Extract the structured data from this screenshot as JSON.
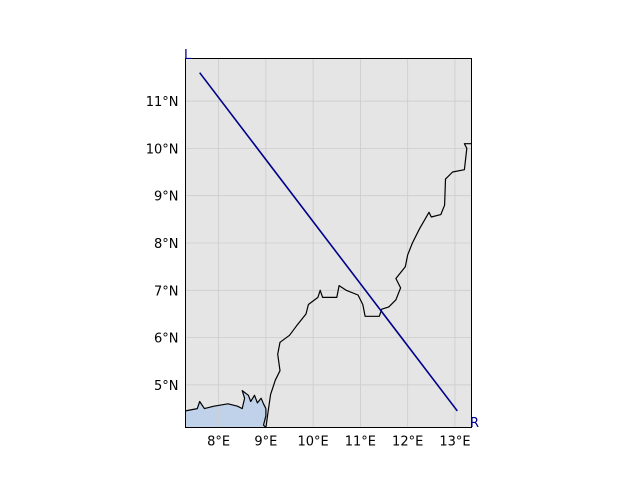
{
  "map": {
    "extent": {
      "lon": [
        7.3,
        13.35
      ],
      "lat": [
        4.1,
        11.9
      ]
    },
    "colors": {
      "land": "#e5e5e5",
      "ocean": "#c0d2ea",
      "coastline": "#000000",
      "grid": "#cccccc",
      "transect": "#00008b",
      "frame": "#000000"
    },
    "gridlines": true,
    "x_ticks": [
      {
        "value": 8,
        "label": "8°E"
      },
      {
        "value": 9,
        "label": "9°E"
      },
      {
        "value": 10,
        "label": "10°E"
      },
      {
        "value": 11,
        "label": "11°E"
      },
      {
        "value": 12,
        "label": "12°E"
      },
      {
        "value": 13,
        "label": "13°E"
      }
    ],
    "y_ticks": [
      {
        "value": 5,
        "label": "5°N"
      },
      {
        "value": 6,
        "label": "6°N"
      },
      {
        "value": 7,
        "label": "7°N"
      },
      {
        "value": 8,
        "label": "8°N"
      },
      {
        "value": 9,
        "label": "9°N"
      },
      {
        "value": 10,
        "label": "10°N"
      },
      {
        "value": 11,
        "label": "11°N"
      }
    ],
    "transect": {
      "start": {
        "lon": 7.6,
        "lat": 11.6,
        "label": "L"
      },
      "end": {
        "lon": 13.05,
        "lat": 4.45,
        "label": "R"
      }
    },
    "coastline": [
      [
        7.3,
        4.45
      ],
      [
        7.55,
        4.5
      ],
      [
        7.6,
        4.65
      ],
      [
        7.7,
        4.5
      ],
      [
        7.9,
        4.55
      ],
      [
        8.2,
        4.6
      ],
      [
        8.4,
        4.55
      ],
      [
        8.5,
        4.5
      ],
      [
        8.55,
        4.72
      ],
      [
        8.5,
        4.88
      ],
      [
        8.63,
        4.78
      ],
      [
        8.68,
        4.65
      ],
      [
        8.76,
        4.78
      ],
      [
        8.82,
        4.62
      ],
      [
        8.9,
        4.72
      ],
      [
        8.95,
        4.6
      ],
      [
        9.0,
        4.5
      ],
      [
        9.0,
        4.35
      ],
      [
        8.95,
        4.15
      ],
      [
        9.0,
        4.1
      ]
    ],
    "border": [
      [
        9.0,
        4.1
      ],
      [
        9.05,
        4.45
      ],
      [
        9.1,
        4.8
      ],
      [
        9.2,
        5.1
      ],
      [
        9.3,
        5.3
      ],
      [
        9.25,
        5.65
      ],
      [
        9.3,
        5.9
      ],
      [
        9.5,
        6.05
      ],
      [
        9.65,
        6.25
      ],
      [
        9.85,
        6.5
      ],
      [
        9.9,
        6.7
      ],
      [
        10.1,
        6.85
      ],
      [
        10.15,
        7.0
      ],
      [
        10.2,
        6.85
      ],
      [
        10.5,
        6.85
      ],
      [
        10.55,
        7.1
      ],
      [
        10.7,
        7.0
      ],
      [
        10.95,
        6.9
      ],
      [
        11.05,
        6.7
      ],
      [
        11.1,
        6.45
      ],
      [
        11.4,
        6.45
      ],
      [
        11.45,
        6.6
      ],
      [
        11.6,
        6.65
      ],
      [
        11.75,
        6.8
      ],
      [
        11.85,
        7.05
      ],
      [
        11.75,
        7.25
      ],
      [
        11.95,
        7.5
      ],
      [
        12.0,
        7.75
      ],
      [
        12.1,
        8.0
      ],
      [
        12.25,
        8.3
      ],
      [
        12.45,
        8.65
      ],
      [
        12.5,
        8.55
      ],
      [
        12.7,
        8.6
      ],
      [
        12.78,
        8.8
      ],
      [
        12.8,
        9.35
      ],
      [
        12.95,
        9.5
      ],
      [
        13.2,
        9.55
      ],
      [
        13.25,
        10.0
      ],
      [
        13.2,
        10.1
      ],
      [
        13.35,
        10.1
      ]
    ]
  }
}
